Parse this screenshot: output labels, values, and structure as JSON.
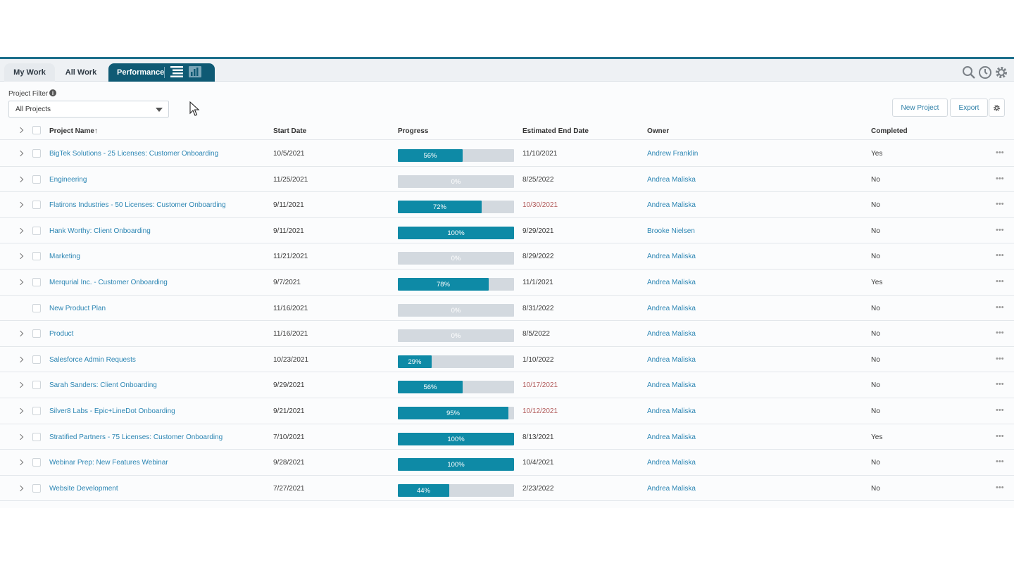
{
  "tabs": {
    "my_work": "My Work",
    "all_work": "All Work",
    "performance": "Performance"
  },
  "icons": {
    "list_view": "list-view-icon",
    "chart_view": "bar-chart-icon",
    "search": "search-icon",
    "history": "clock-icon",
    "settings": "gear-icon"
  },
  "filter": {
    "label": "Project Filter",
    "value": "All Projects"
  },
  "actions": {
    "new_project": "New Project",
    "export": "Export"
  },
  "columns": {
    "name": "Project Name",
    "sort_indicator": "↑",
    "start": "Start Date",
    "progress": "Progress",
    "end": "Estimated End Date",
    "owner": "Owner",
    "completed": "Completed"
  },
  "colors": {
    "accent": "#0f5a74",
    "progress_fill": "#0e8aa6",
    "progress_track": "#d3d9df",
    "link": "#2b85b3",
    "late": "#b15a5a"
  },
  "rows": [
    {
      "name": "BigTek Solutions - 25 Licenses: Customer Onboarding",
      "start": "10/5/2021",
      "progress": 56,
      "progress_label": "56%",
      "end": "11/10/2021",
      "late": false,
      "owner": "Andrew Franklin",
      "completed": "Yes",
      "expandable": true
    },
    {
      "name": "Engineering",
      "start": "11/25/2021",
      "progress": 0,
      "progress_label": "0%",
      "end": "8/25/2022",
      "late": false,
      "owner": "Andrea Maliska",
      "completed": "No",
      "expandable": true
    },
    {
      "name": "Flatirons Industries - 50 Licenses: Customer Onboarding",
      "start": "9/11/2021",
      "progress": 72,
      "progress_label": "72%",
      "end": "10/30/2021",
      "late": true,
      "owner": "Andrea Maliska",
      "completed": "No",
      "expandable": true
    },
    {
      "name": "Hank Worthy: Client Onboarding",
      "start": "9/11/2021",
      "progress": 100,
      "progress_label": "100%",
      "end": "9/29/2021",
      "late": false,
      "owner": "Brooke Nielsen",
      "completed": "No",
      "expandable": true
    },
    {
      "name": "Marketing",
      "start": "11/21/2021",
      "progress": 0,
      "progress_label": "0%",
      "end": "8/29/2022",
      "late": false,
      "owner": "Andrea Maliska",
      "completed": "No",
      "expandable": true
    },
    {
      "name": "Merqurial Inc. - Customer Onboarding",
      "start": "9/7/2021",
      "progress": 78,
      "progress_label": "78%",
      "end": "11/1/2021",
      "late": false,
      "owner": "Andrea Maliska",
      "completed": "Yes",
      "expandable": true
    },
    {
      "name": "New Product Plan",
      "start": "11/16/2021",
      "progress": 0,
      "progress_label": "0%",
      "end": "8/31/2022",
      "late": false,
      "owner": "Andrea Maliska",
      "completed": "No",
      "expandable": false
    },
    {
      "name": "Product",
      "start": "11/16/2021",
      "progress": 0,
      "progress_label": "0%",
      "end": "8/5/2022",
      "late": false,
      "owner": "Andrea Maliska",
      "completed": "No",
      "expandable": true
    },
    {
      "name": "Salesforce Admin Requests",
      "start": "10/23/2021",
      "progress": 29,
      "progress_label": "29%",
      "end": "1/10/2022",
      "late": false,
      "owner": "Andrea Maliska",
      "completed": "No",
      "expandable": true
    },
    {
      "name": "Sarah Sanders: Client Onboarding",
      "start": "9/29/2021",
      "progress": 56,
      "progress_label": "56%",
      "end": "10/17/2021",
      "late": true,
      "owner": "Andrea Maliska",
      "completed": "No",
      "expandable": true
    },
    {
      "name": "Silver8 Labs - Epic+LineDot Onboarding",
      "start": "9/21/2021",
      "progress": 95,
      "progress_label": "95%",
      "end": "10/12/2021",
      "late": true,
      "owner": "Andrea Maliska",
      "completed": "No",
      "expandable": true
    },
    {
      "name": "Stratified Partners - 75 Licenses: Customer Onboarding",
      "start": "7/10/2021",
      "progress": 100,
      "progress_label": "100%",
      "end": "8/13/2021",
      "late": false,
      "owner": "Andrea Maliska",
      "completed": "Yes",
      "expandable": true
    },
    {
      "name": "Webinar Prep: New Features Webinar",
      "start": "9/28/2021",
      "progress": 100,
      "progress_label": "100%",
      "end": "10/4/2021",
      "late": false,
      "owner": "Andrea Maliska",
      "completed": "No",
      "expandable": true
    },
    {
      "name": "Website Development",
      "start": "7/27/2021",
      "progress": 44,
      "progress_label": "44%",
      "end": "2/23/2022",
      "late": false,
      "owner": "Andrea Maliska",
      "completed": "No",
      "expandable": true
    }
  ]
}
